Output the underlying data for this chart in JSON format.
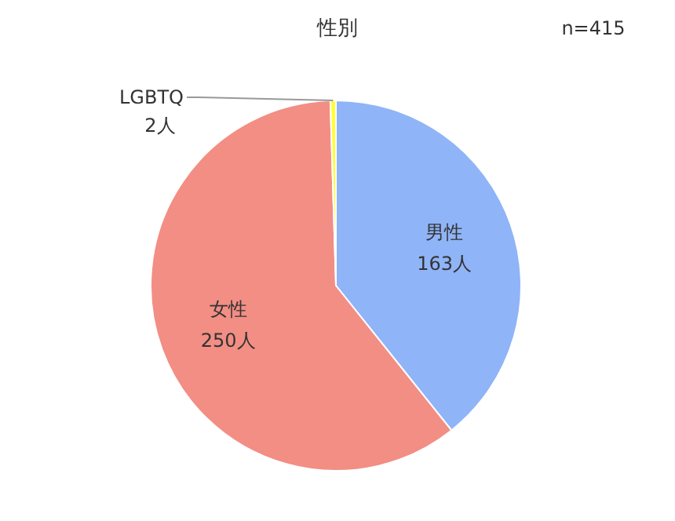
{
  "chart_data": {
    "type": "pie",
    "title": "性別",
    "annotations": [
      "n=415"
    ],
    "categories": [
      "男性",
      "女性",
      "LGBTQ"
    ],
    "values": [
      163,
      250,
      2
    ],
    "value_labels": [
      "163人",
      "250人",
      "2人"
    ],
    "colors": [
      "#8fb4f7",
      "#f28e84",
      "#ffff33"
    ],
    "legend": false
  }
}
